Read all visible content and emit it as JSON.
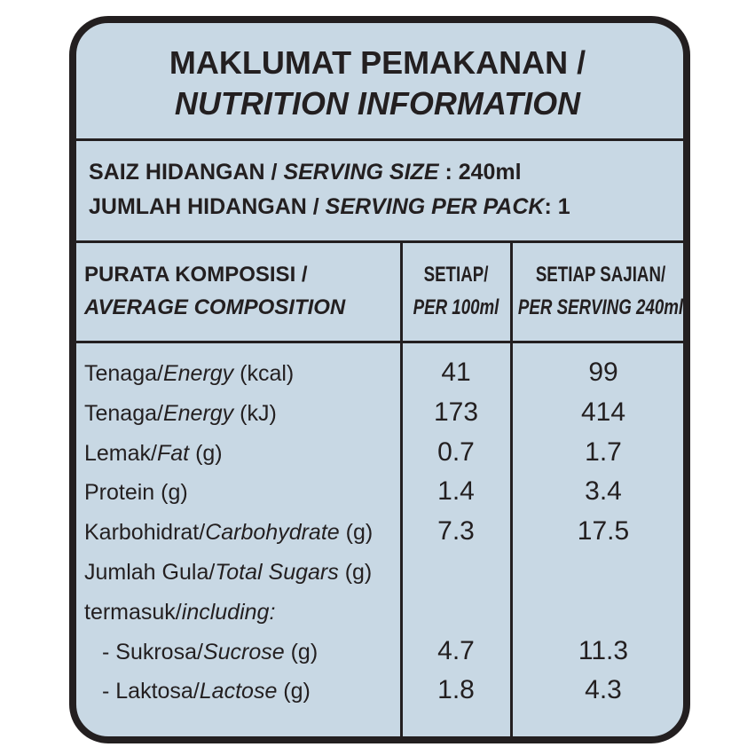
{
  "header": {
    "title_malay": "MAKLUMAT PEMAKANAN /",
    "title_english": "NUTRITION INFORMATION"
  },
  "serving": [
    {
      "malay": "SAIZ HIDANGAN /",
      "english": "SERVING SIZE",
      "value": ": 240ml"
    },
    {
      "malay": "JUMLAH HIDANGAN /",
      "english": "SERVING PER PACK",
      "value": ": 1"
    }
  ],
  "table": {
    "columns": [
      {
        "malay": "PURATA KOMPOSISI /",
        "english": "AVERAGE COMPOSITION"
      },
      {
        "malay": "SETIAP/",
        "english": "PER 100ml"
      },
      {
        "malay": "SETIAP SAJIAN/",
        "english": "PER SERVING 240ml"
      }
    ],
    "rows": [
      {
        "label": {
          "malay": "Tenaga/",
          "english": "Energy",
          "unit": "(kcal)"
        },
        "per_100ml": "41",
        "per_serving": "99"
      },
      {
        "label": {
          "malay": "Tenaga/",
          "english": "Energy",
          "unit": "(kJ)"
        },
        "per_100ml": "173",
        "per_serving": "414"
      },
      {
        "label": {
          "malay": "Lemak/",
          "english": "Fat",
          "unit": "(g)"
        },
        "per_100ml": "0.7",
        "per_serving": "1.7"
      },
      {
        "label": {
          "malay": "Protein",
          "unit": "(g)"
        },
        "per_100ml": "1.4",
        "per_serving": "3.4"
      },
      {
        "label": {
          "malay": "Karbohidrat/",
          "english": "Carbohydrate",
          "unit": "(g)"
        },
        "per_100ml": "7.3",
        "per_serving": "17.5"
      },
      {
        "label": {
          "malay": "Jumlah Gula/",
          "english": "Total Sugars",
          "unit": "(g)"
        }
      },
      {
        "label": {
          "malay": "termasuk/",
          "english": "including:"
        }
      },
      {
        "label": {
          "malay": "- Sukrosa/",
          "english": "Sucrose",
          "unit": "(g)"
        },
        "per_100ml": "4.7",
        "per_serving": "11.3"
      },
      {
        "label": {
          "malay": "- Laktosa/",
          "english": "Lactose",
          "unit": "(g)"
        },
        "per_100ml": "1.8",
        "per_serving": "4.3"
      }
    ]
  }
}
